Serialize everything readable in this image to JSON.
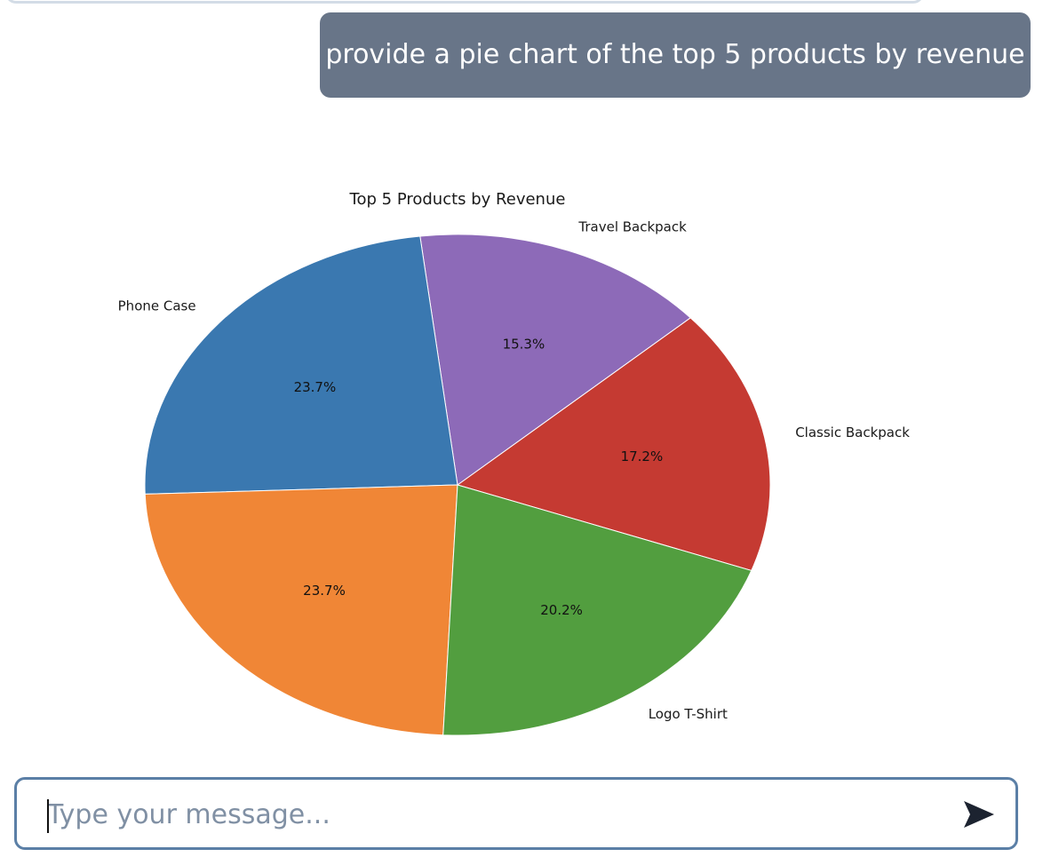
{
  "user_message": {
    "text": "provide a pie chart of the top 5 products by revenue"
  },
  "chart_data": {
    "type": "pie",
    "title": "Top 5 Products by Revenue",
    "categories": [
      "Classic Backpack",
      "Travel Backpack",
      "Phone Case",
      "",
      "Logo T-Shirt"
    ],
    "values": [
      17.2,
      15.3,
      23.7,
      23.7,
      20.2
    ],
    "value_labels": [
      "17.2%",
      "15.3%",
      "23.7%",
      "23.7%",
      "20.2%"
    ],
    "colors": [
      "#c53a32",
      "#8d6ab8",
      "#3a78b0",
      "#f08636",
      "#529e3f"
    ],
    "start_angle_deg": -20,
    "direction": "counterclockwise"
  },
  "composer": {
    "placeholder": "Type your message...",
    "value": "",
    "send_icon": "send-arrow-icon"
  }
}
